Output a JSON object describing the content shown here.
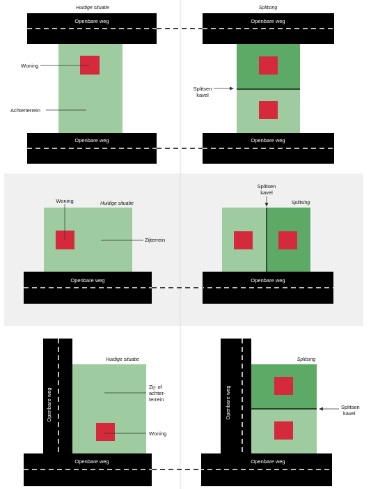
{
  "colors": {
    "road": "#000000",
    "plot_light": "#9ecb9f",
    "plot_dark": "#5da966",
    "house": "#d42a3c",
    "panel_bg": "#f0f0f0",
    "divider": "#dddddd"
  },
  "row1": {
    "left_header": "Huidige situatie",
    "right_header": "Splitsing",
    "road_top": "Openbare weg",
    "road_bottom": "Openbare weg",
    "road_top_right": "Openbare weg",
    "road_bottom_right": "Openbare weg",
    "woning": "Woning",
    "achterterrein": "Achterterrein",
    "splitsen_line1": "Splitsen",
    "splitsen_line2": "kavel"
  },
  "row2": {
    "left_header": "Huidige situatie",
    "right_header": "Splitsing",
    "woning": "Woning",
    "zijterrein": "Zijterrein",
    "splitsen_line1": "Splitsen",
    "splitsen_line2": "kavel",
    "road_left": "Openbare weg",
    "road_right": "Openbare weg"
  },
  "row3": {
    "left_header": "Huidige situatie",
    "right_header": "Splitsing",
    "vertical_road_left": "Openbare weg",
    "vertical_road_right": "Openbare weg",
    "bottom_road_left": "Openbare weg",
    "bottom_road_right": "Openbare weg",
    "terrein_line1": "Zij- of",
    "terrein_line2": "achter-",
    "terrein_line3": "terrein",
    "woning": "Woning",
    "splitsen_line1": "Splitsen",
    "splitsen_line2": "kavel"
  }
}
